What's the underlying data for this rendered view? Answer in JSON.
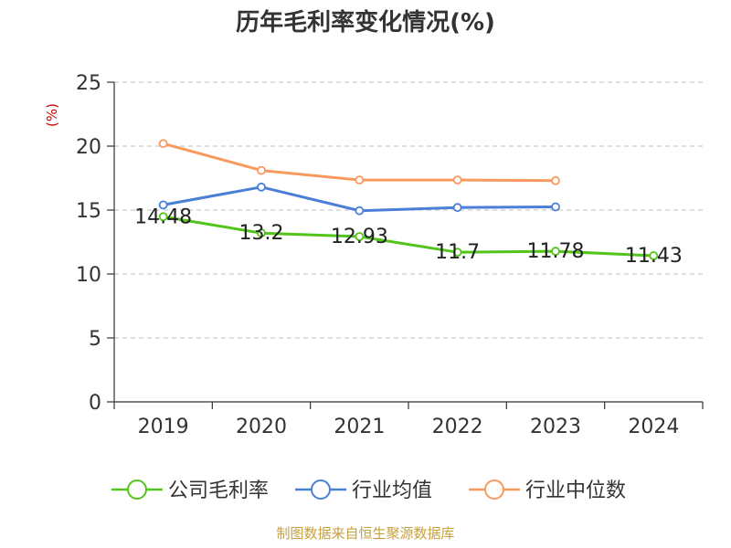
{
  "chart_data": {
    "type": "line",
    "title": "历年毛利率变化情况(%)",
    "unit_label": "(%)",
    "categories": [
      "2019",
      "2020",
      "2021",
      "2022",
      "2023",
      "2024"
    ],
    "ylim": [
      0,
      25
    ],
    "yticks": [
      0,
      5,
      10,
      15,
      20,
      25
    ],
    "grid": true,
    "legend_position": "bottom",
    "series": [
      {
        "name": "公司毛利率",
        "color": "#52c41a",
        "values": [
          14.48,
          13.2,
          12.93,
          11.7,
          11.78,
          11.43
        ],
        "labels": [
          "14.48",
          "13.2",
          "12.93",
          "11.7",
          "11.78",
          "11.43"
        ]
      },
      {
        "name": "行业均值",
        "color": "#4a7fd8",
        "values": [
          15.4,
          16.8,
          14.95,
          15.2,
          15.25,
          null
        ]
      },
      {
        "name": "行业中位数",
        "color": "#f89a5e",
        "values": [
          20.2,
          18.1,
          17.35,
          17.35,
          17.3,
          null
        ]
      }
    ],
    "source": "制图数据来自恒生聚源数据库"
  }
}
